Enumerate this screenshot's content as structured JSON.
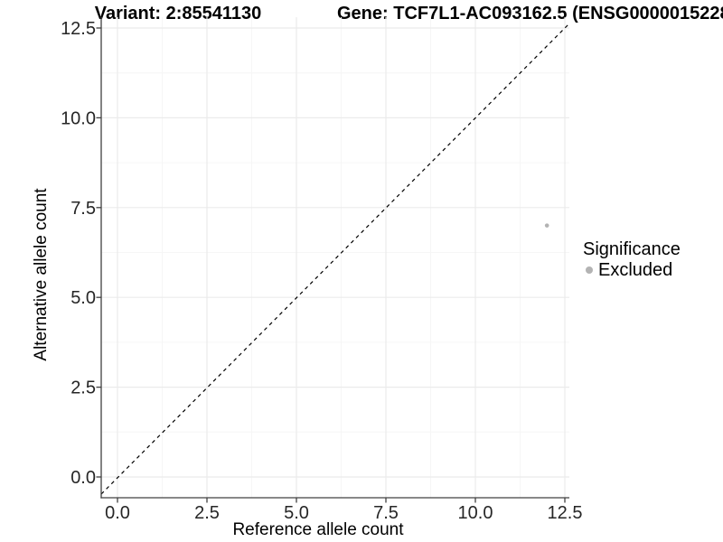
{
  "chart_data": {
    "type": "scatter",
    "titles": {
      "variant": "Variant: 2:85541130",
      "gene": "Gene: TCF7L1-AC093162.5 (ENSG0000015228"
    },
    "xlabel": "Reference allele count",
    "ylabel": "Alternative allele count",
    "x_ticks": [
      0,
      2.5,
      5,
      7.5,
      10,
      12.5
    ],
    "y_ticks": [
      0,
      2.5,
      5,
      7.5,
      10,
      12.5
    ],
    "x_minor_ticks": [
      1.25,
      3.75,
      6.25,
      8.75,
      11.25
    ],
    "y_minor_ticks": [
      1.25,
      3.75,
      6.25,
      8.75,
      11.25
    ],
    "xlim": [
      -0.46,
      12.63
    ],
    "ylim": [
      -0.58,
      12.78
    ],
    "grid": "major+minor",
    "legend_position": "right",
    "reference_line": {
      "type": "identity y=x",
      "style": "dashed",
      "color": "#000000"
    },
    "series": [
      {
        "name": "Excluded",
        "color": "#b3b3b3",
        "points": [
          {
            "x": 12,
            "y": 7
          }
        ]
      }
    ],
    "legend": {
      "title": "Significance",
      "items": [
        {
          "label": "Excluded",
          "color": "#b3b3b3"
        }
      ]
    },
    "colors": {
      "grid_major": "#ebebeb",
      "grid_minor": "#f6f6f6",
      "axis_line": "#404040",
      "tick_text": "#262626",
      "point": "#b3b3b3"
    }
  }
}
